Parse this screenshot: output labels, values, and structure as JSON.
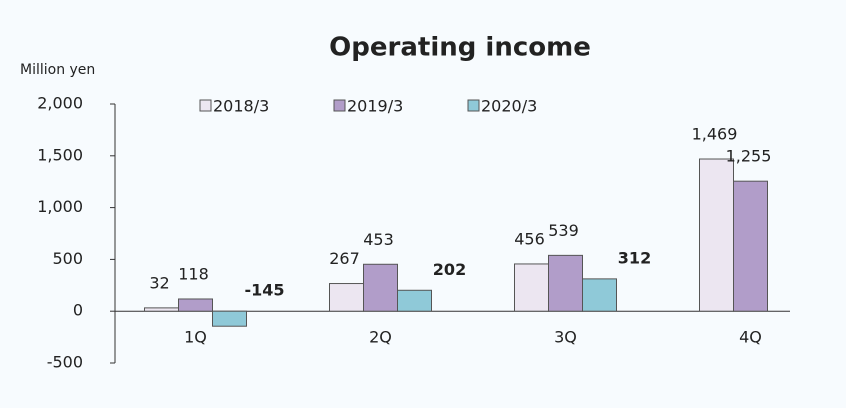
{
  "chart_data": {
    "type": "bar",
    "title": "Operating income",
    "y_label": "Million yen",
    "categories": [
      "1Q",
      "2Q",
      "3Q",
      "4Q"
    ],
    "series": [
      {
        "name": "2018/3",
        "color": "#ece6f1",
        "values": [
          32,
          267,
          456,
          1469
        ],
        "value_labels": [
          "32",
          "267",
          "456",
          "1,469"
        ]
      },
      {
        "name": "2019/3",
        "color": "#b19dc9",
        "values": [
          118,
          453,
          539,
          1255
        ],
        "value_labels": [
          "118",
          "453",
          "539",
          "1,255"
        ]
      },
      {
        "name": "2020/3",
        "color": "#8fc9d8",
        "values": [
          -145,
          202,
          312,
          null
        ]
      }
    ],
    "ylim": [
      -500,
      2000
    ],
    "yticks": [
      -500,
      0,
      500,
      {
        "value": 1000,
        "label": "1,000"
      },
      {
        "value": 1500,
        "label": "1,500"
      },
      {
        "value": 2000,
        "label": "2,000"
      }
    ],
    "grid": false,
    "legend": "top"
  }
}
